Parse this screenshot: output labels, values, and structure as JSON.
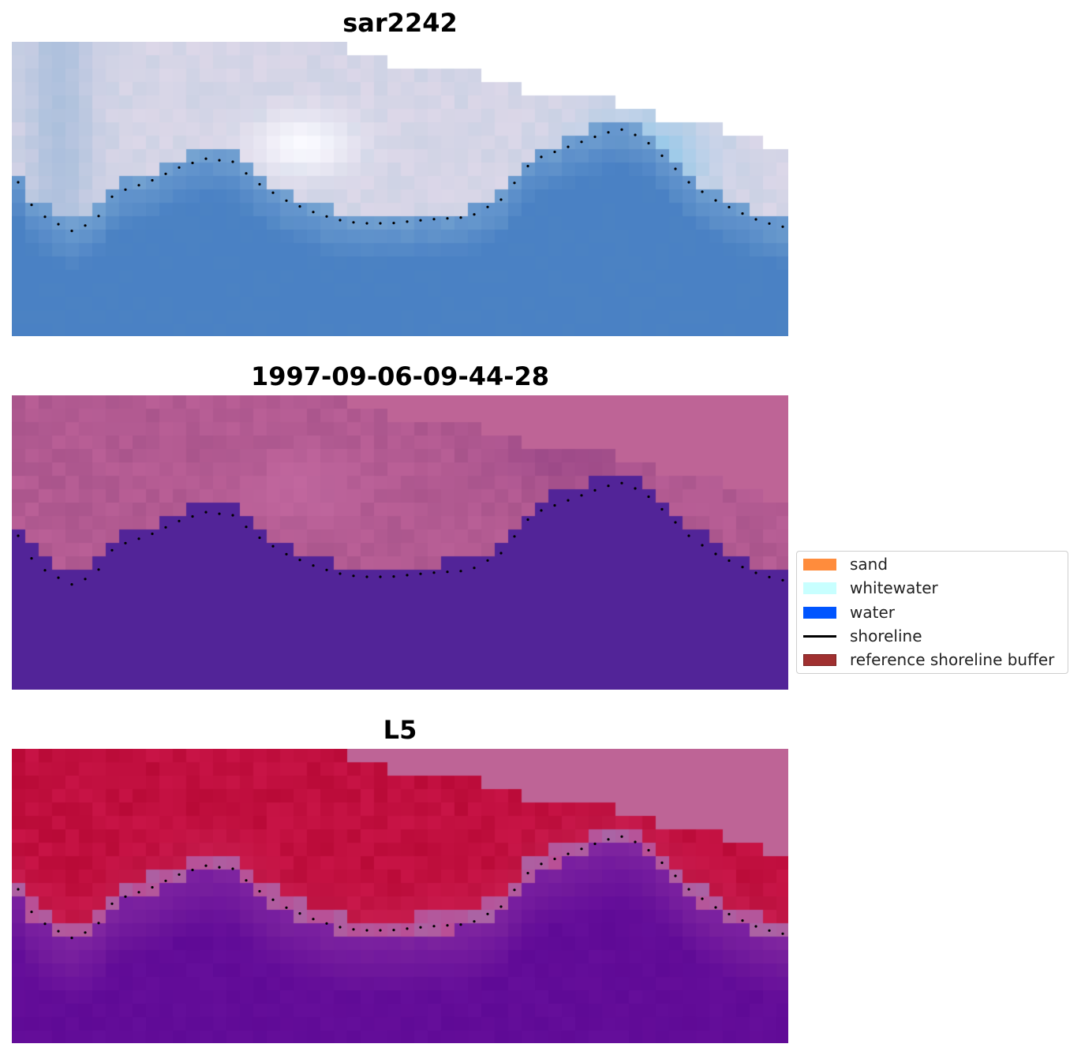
{
  "panels": [
    {
      "title": "sar2242",
      "style": "rgb"
    },
    {
      "title": "1997-09-06-09-44-28",
      "style": "classified"
    },
    {
      "title": "L5",
      "style": "probability"
    }
  ],
  "legend": {
    "items": [
      {
        "label": "sand",
        "kind": "patch",
        "color": "#ff8c3c"
      },
      {
        "label": "whitewater",
        "kind": "patch",
        "color": "#c8ffff"
      },
      {
        "label": "water",
        "kind": "patch",
        "color": "#0055ff"
      },
      {
        "label": "shoreline",
        "kind": "line",
        "color": "#000000"
      },
      {
        "label": "reference shoreline buffer",
        "kind": "patch",
        "color": "#a03030"
      }
    ]
  }
}
